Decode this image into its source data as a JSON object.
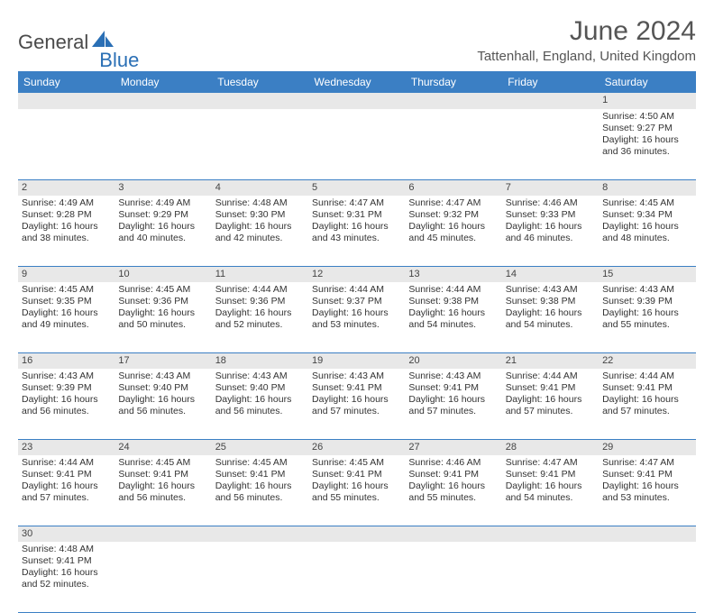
{
  "brand": {
    "part1": "General",
    "part2": "Blue",
    "accent_color": "#2a6fb5"
  },
  "title": "June 2024",
  "location": "Tattenhall, England, United Kingdom",
  "day_headers": [
    "Sunday",
    "Monday",
    "Tuesday",
    "Wednesday",
    "Thursday",
    "Friday",
    "Saturday"
  ],
  "colors": {
    "header_bg": "#3b7fc4",
    "header_text": "#ffffff",
    "daynum_bg": "#e8e8e8",
    "rule": "#3b7fc4",
    "text": "#333333",
    "title_text": "#555555"
  },
  "layout": {
    "first_weekday_index": 6,
    "days_in_month": 30
  },
  "days": {
    "1": {
      "sunrise": "4:50 AM",
      "sunset": "9:27 PM",
      "daylight": "16 hours and 36 minutes."
    },
    "2": {
      "sunrise": "4:49 AM",
      "sunset": "9:28 PM",
      "daylight": "16 hours and 38 minutes."
    },
    "3": {
      "sunrise": "4:49 AM",
      "sunset": "9:29 PM",
      "daylight": "16 hours and 40 minutes."
    },
    "4": {
      "sunrise": "4:48 AM",
      "sunset": "9:30 PM",
      "daylight": "16 hours and 42 minutes."
    },
    "5": {
      "sunrise": "4:47 AM",
      "sunset": "9:31 PM",
      "daylight": "16 hours and 43 minutes."
    },
    "6": {
      "sunrise": "4:47 AM",
      "sunset": "9:32 PM",
      "daylight": "16 hours and 45 minutes."
    },
    "7": {
      "sunrise": "4:46 AM",
      "sunset": "9:33 PM",
      "daylight": "16 hours and 46 minutes."
    },
    "8": {
      "sunrise": "4:45 AM",
      "sunset": "9:34 PM",
      "daylight": "16 hours and 48 minutes."
    },
    "9": {
      "sunrise": "4:45 AM",
      "sunset": "9:35 PM",
      "daylight": "16 hours and 49 minutes."
    },
    "10": {
      "sunrise": "4:45 AM",
      "sunset": "9:36 PM",
      "daylight": "16 hours and 50 minutes."
    },
    "11": {
      "sunrise": "4:44 AM",
      "sunset": "9:36 PM",
      "daylight": "16 hours and 52 minutes."
    },
    "12": {
      "sunrise": "4:44 AM",
      "sunset": "9:37 PM",
      "daylight": "16 hours and 53 minutes."
    },
    "13": {
      "sunrise": "4:44 AM",
      "sunset": "9:38 PM",
      "daylight": "16 hours and 54 minutes."
    },
    "14": {
      "sunrise": "4:43 AM",
      "sunset": "9:38 PM",
      "daylight": "16 hours and 54 minutes."
    },
    "15": {
      "sunrise": "4:43 AM",
      "sunset": "9:39 PM",
      "daylight": "16 hours and 55 minutes."
    },
    "16": {
      "sunrise": "4:43 AM",
      "sunset": "9:39 PM",
      "daylight": "16 hours and 56 minutes."
    },
    "17": {
      "sunrise": "4:43 AM",
      "sunset": "9:40 PM",
      "daylight": "16 hours and 56 minutes."
    },
    "18": {
      "sunrise": "4:43 AM",
      "sunset": "9:40 PM",
      "daylight": "16 hours and 56 minutes."
    },
    "19": {
      "sunrise": "4:43 AM",
      "sunset": "9:41 PM",
      "daylight": "16 hours and 57 minutes."
    },
    "20": {
      "sunrise": "4:43 AM",
      "sunset": "9:41 PM",
      "daylight": "16 hours and 57 minutes."
    },
    "21": {
      "sunrise": "4:44 AM",
      "sunset": "9:41 PM",
      "daylight": "16 hours and 57 minutes."
    },
    "22": {
      "sunrise": "4:44 AM",
      "sunset": "9:41 PM",
      "daylight": "16 hours and 57 minutes."
    },
    "23": {
      "sunrise": "4:44 AM",
      "sunset": "9:41 PM",
      "daylight": "16 hours and 57 minutes."
    },
    "24": {
      "sunrise": "4:45 AM",
      "sunset": "9:41 PM",
      "daylight": "16 hours and 56 minutes."
    },
    "25": {
      "sunrise": "4:45 AM",
      "sunset": "9:41 PM",
      "daylight": "16 hours and 56 minutes."
    },
    "26": {
      "sunrise": "4:45 AM",
      "sunset": "9:41 PM",
      "daylight": "16 hours and 55 minutes."
    },
    "27": {
      "sunrise": "4:46 AM",
      "sunset": "9:41 PM",
      "daylight": "16 hours and 55 minutes."
    },
    "28": {
      "sunrise": "4:47 AM",
      "sunset": "9:41 PM",
      "daylight": "16 hours and 54 minutes."
    },
    "29": {
      "sunrise": "4:47 AM",
      "sunset": "9:41 PM",
      "daylight": "16 hours and 53 minutes."
    },
    "30": {
      "sunrise": "4:48 AM",
      "sunset": "9:41 PM",
      "daylight": "16 hours and 52 minutes."
    }
  },
  "labels": {
    "sunrise": "Sunrise: ",
    "sunset": "Sunset: ",
    "daylight": "Daylight: "
  }
}
